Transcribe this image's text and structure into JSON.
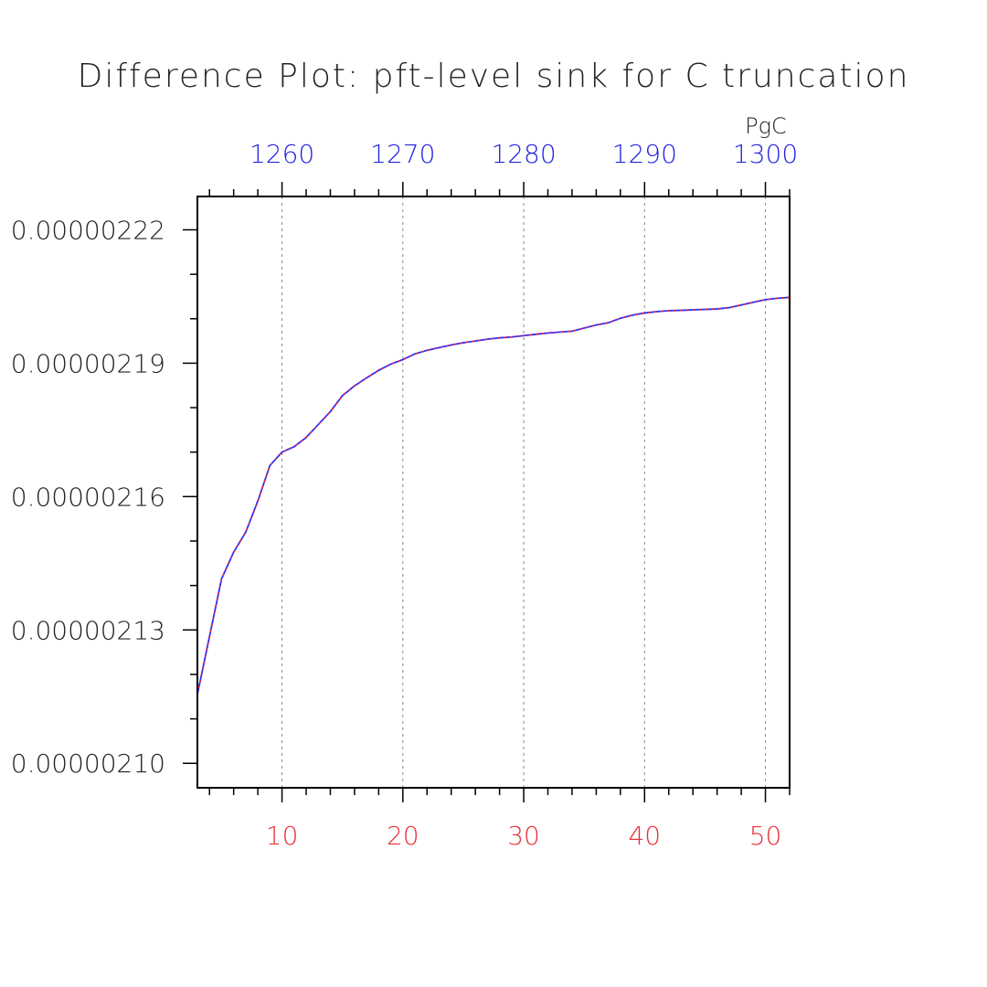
{
  "chart_data": {
    "type": "line",
    "title": "Difference Plot: pft-level sink for C truncation",
    "top_axis_unit": "PgC",
    "colors": {
      "top_ticks": "#2323e0",
      "bottom_ticks": "#e8303a",
      "series_a": "#2f2fff",
      "series_b": "#ff2a2a",
      "axis": "#000000",
      "grid": "#888888"
    },
    "grid": "vertical dashed",
    "xlim": [
      3,
      52
    ],
    "ylim": [
      2.0945e-06,
      2.2275e-06
    ],
    "x_ticks": [
      "10",
      "20",
      "30",
      "40",
      "50"
    ],
    "x_tick_values": [
      10,
      20,
      30,
      40,
      50
    ],
    "top_ticks": [
      "1260",
      "1270",
      "1280",
      "1290",
      "1300"
    ],
    "top_tick_values": [
      10,
      20,
      30,
      40,
      50
    ],
    "y_ticks": [
      "0.00000210",
      "0.00000213",
      "0.00000216",
      "0.00000219",
      "0.00000222"
    ],
    "y_tick_values": [
      2.1e-06,
      2.13e-06,
      2.16e-06,
      2.19e-06,
      2.22e-06
    ],
    "x": [
      3,
      4,
      5,
      6,
      7,
      8,
      9,
      10,
      11,
      12,
      13,
      14,
      15,
      16,
      17,
      18,
      19,
      20,
      21,
      22,
      23,
      24,
      25,
      26,
      27,
      28,
      29,
      30,
      31,
      32,
      33,
      34,
      35,
      36,
      37,
      38,
      39,
      40,
      41,
      42,
      43,
      44,
      45,
      46,
      47,
      48,
      49,
      50,
      51,
      52
    ],
    "series": [
      {
        "values": [
          2.1155e-06,
          2.1285e-06,
          2.1415e-06,
          2.1475e-06,
          2.152e-06,
          2.159e-06,
          2.167e-06,
          2.17e-06,
          2.1712e-06,
          2.1733e-06,
          2.1762e-06,
          2.1791e-06,
          2.1827e-06,
          2.1849e-06,
          2.1867e-06,
          2.1884e-06,
          2.1898e-06,
          2.1908e-06,
          2.1921e-06,
          2.1929e-06,
          2.1935e-06,
          2.1941e-06,
          2.1946e-06,
          2.195e-06,
          2.1954e-06,
          2.1957e-06,
          2.1959e-06,
          2.1962e-06,
          2.1965e-06,
          2.1968e-06,
          2.197e-06,
          2.1972e-06,
          2.1979e-06,
          2.1986e-06,
          2.1991e-06,
          2.2001e-06,
          2.2008e-06,
          2.2013e-06,
          2.2016e-06,
          2.2018e-06,
          2.2019e-06,
          2.202e-06,
          2.2021e-06,
          2.2022e-06,
          2.2025e-06,
          2.2031e-06,
          2.2037e-06,
          2.2043e-06,
          2.2046e-06,
          2.2048e-06
        ]
      },
      {
        "values": [
          2.1155e-06,
          2.1285e-06,
          2.1415e-06,
          2.1475e-06,
          2.152e-06,
          2.159e-06,
          2.167e-06,
          2.17e-06,
          2.1712e-06,
          2.1733e-06,
          2.1762e-06,
          2.1791e-06,
          2.1827e-06,
          2.1849e-06,
          2.1867e-06,
          2.1884e-06,
          2.1898e-06,
          2.1908e-06,
          2.1921e-06,
          2.1929e-06,
          2.1935e-06,
          2.1941e-06,
          2.1946e-06,
          2.195e-06,
          2.1954e-06,
          2.1957e-06,
          2.1959e-06,
          2.1962e-06,
          2.1965e-06,
          2.1968e-06,
          2.197e-06,
          2.1972e-06,
          2.1979e-06,
          2.1986e-06,
          2.1991e-06,
          2.2001e-06,
          2.2008e-06,
          2.2013e-06,
          2.2016e-06,
          2.2018e-06,
          2.2019e-06,
          2.202e-06,
          2.2021e-06,
          2.2022e-06,
          2.2025e-06,
          2.2031e-06,
          2.2037e-06,
          2.2043e-06,
          2.2046e-06,
          2.2048e-06
        ]
      }
    ]
  }
}
